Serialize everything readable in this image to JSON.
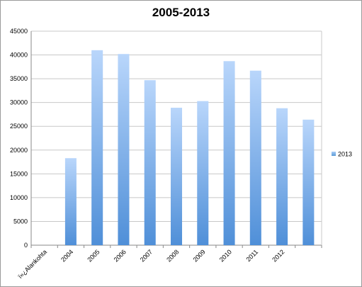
{
  "chart_data": {
    "type": "bar",
    "title": "2005-2013",
    "xlabel": "",
    "ylabel": "",
    "categories": [
      "ï»¿Alankohta",
      "2004",
      "2005",
      "2006",
      "2007",
      "2008",
      "2009",
      "2010",
      "2011",
      "2012",
      ""
    ],
    "series": [
      {
        "name": "2013",
        "values": [
          0,
          18300,
          41000,
          40200,
          34700,
          28900,
          30300,
          38700,
          36700,
          28800,
          26400
        ],
        "color": "#5b9bd5"
      }
    ],
    "ylim": [
      0,
      45000
    ],
    "yticks": [
      0,
      5000,
      10000,
      15000,
      20000,
      25000,
      30000,
      35000,
      40000,
      45000
    ],
    "grid": true,
    "legend": "right"
  }
}
